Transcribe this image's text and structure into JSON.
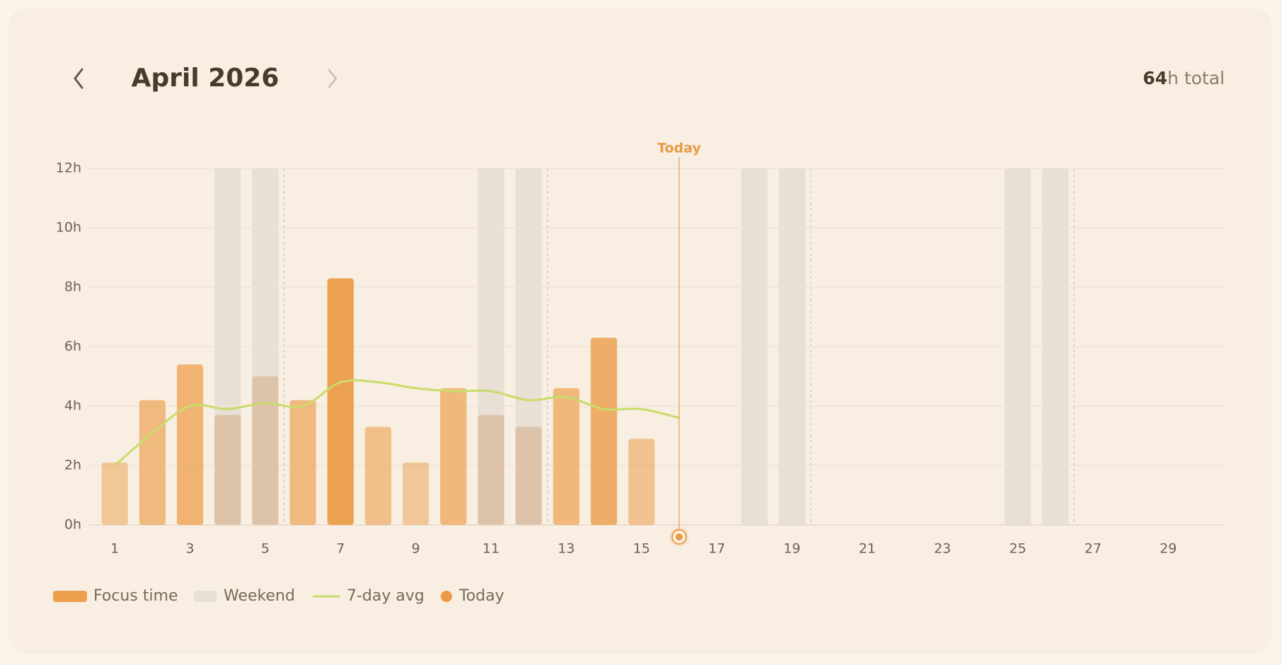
{
  "header": {
    "title": "April 2026",
    "total": {
      "value": 64,
      "unit": "h total"
    }
  },
  "chart_data": {
    "type": "bar",
    "x": [
      1,
      2,
      3,
      4,
      5,
      6,
      7,
      8,
      9,
      10,
      11,
      12,
      13,
      14,
      15,
      16,
      17,
      18,
      19,
      20,
      21,
      22,
      23,
      24,
      25,
      26,
      27,
      28,
      29,
      30
    ],
    "xlim": [
      0.3,
      30.5
    ],
    "xticks": [
      1,
      3,
      5,
      7,
      9,
      11,
      13,
      15,
      17,
      19,
      21,
      23,
      25,
      27,
      29
    ],
    "ylim": [
      0,
      12
    ],
    "yticks": [
      {
        "value": 0,
        "label": "0h"
      },
      {
        "value": 2,
        "label": "2h"
      },
      {
        "value": 4,
        "label": "4h"
      },
      {
        "value": 6,
        "label": "6h"
      },
      {
        "value": 8,
        "label": "8h"
      },
      {
        "value": 10,
        "label": "10h"
      },
      {
        "value": 12,
        "label": "12h"
      }
    ],
    "grid": true,
    "series": [
      {
        "name": "Focus time",
        "color": "#eca04e",
        "values": [
          2.1,
          4.2,
          5.4,
          3.7,
          5.0,
          4.2,
          8.3,
          3.3,
          2.1,
          4.6,
          3.7,
          3.3,
          4.6,
          6.3,
          2.9,
          null,
          null,
          null,
          null,
          null,
          null,
          null,
          null,
          null,
          null,
          null,
          null,
          null,
          null,
          null
        ]
      },
      {
        "name": "7-day avg",
        "color": "#c9dc6a",
        "values": [
          2.0,
          3.1,
          4.0,
          3.9,
          4.1,
          4.0,
          4.8,
          4.8,
          4.6,
          4.5,
          4.5,
          4.2,
          4.3,
          3.9,
          3.9,
          3.6,
          null,
          null,
          null,
          null,
          null,
          null,
          null,
          null,
          null,
          null,
          null,
          null,
          null,
          null
        ]
      }
    ],
    "weekend": {
      "name": "Weekend",
      "color": "#e8dfd5",
      "days": [
        4,
        5,
        11,
        12,
        18,
        19,
        25,
        26
      ]
    },
    "today": {
      "name": "Today",
      "label": "Today",
      "day": 16,
      "color": "#eb9a47"
    }
  }
}
